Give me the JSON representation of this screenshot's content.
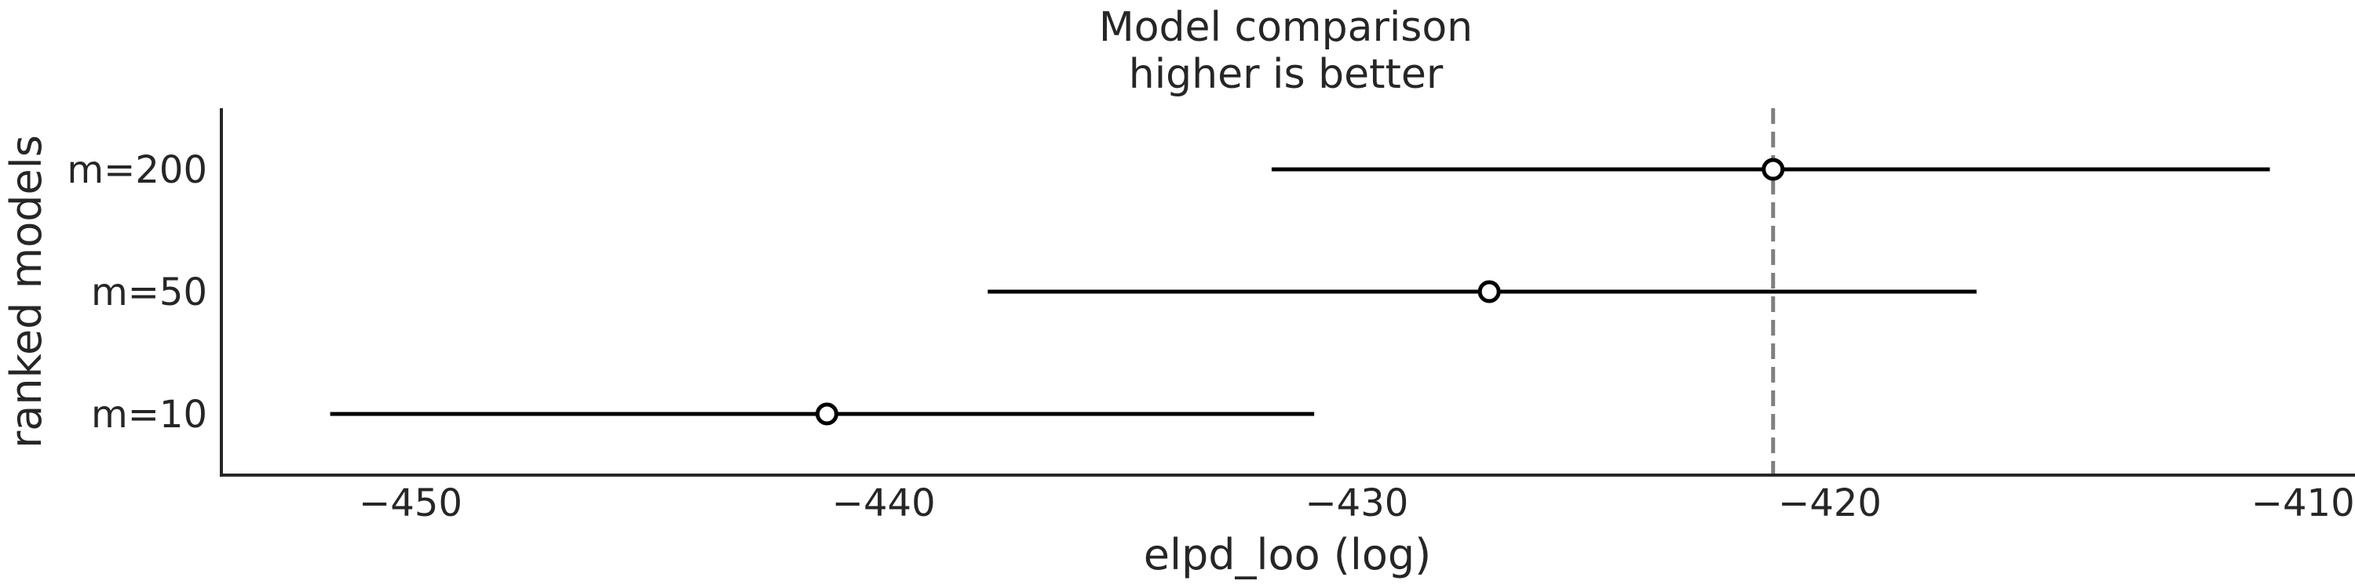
{
  "chart_data": {
    "type": "scatter",
    "title": [
      "Model comparison",
      "higher is better"
    ],
    "xlabel": "elpd_loo (log)",
    "ylabel": "ranked models",
    "xlim": [
      -454,
      -408.9
    ],
    "xticks": [
      -450,
      -440,
      -430,
      -420,
      -410
    ],
    "xtick_labels": [
      "−450",
      "−440",
      "−430",
      "−420",
      "−410"
    ],
    "models": [
      {
        "name": "m=200",
        "elpd": -421.2,
        "lower": -431.8,
        "upper": -410.7
      },
      {
        "name": "m=50",
        "elpd": -427.2,
        "lower": -437.8,
        "upper": -416.9
      },
      {
        "name": "m=10",
        "elpd": -441.2,
        "lower": -451.7,
        "upper": -430.9
      }
    ],
    "reference_line": -421.2,
    "grid": false,
    "colors": {
      "interval": "#000000",
      "marker_face": "#ffffff",
      "marker_edge": "#000000",
      "reference": "#808080",
      "axis": "#262626"
    }
  }
}
